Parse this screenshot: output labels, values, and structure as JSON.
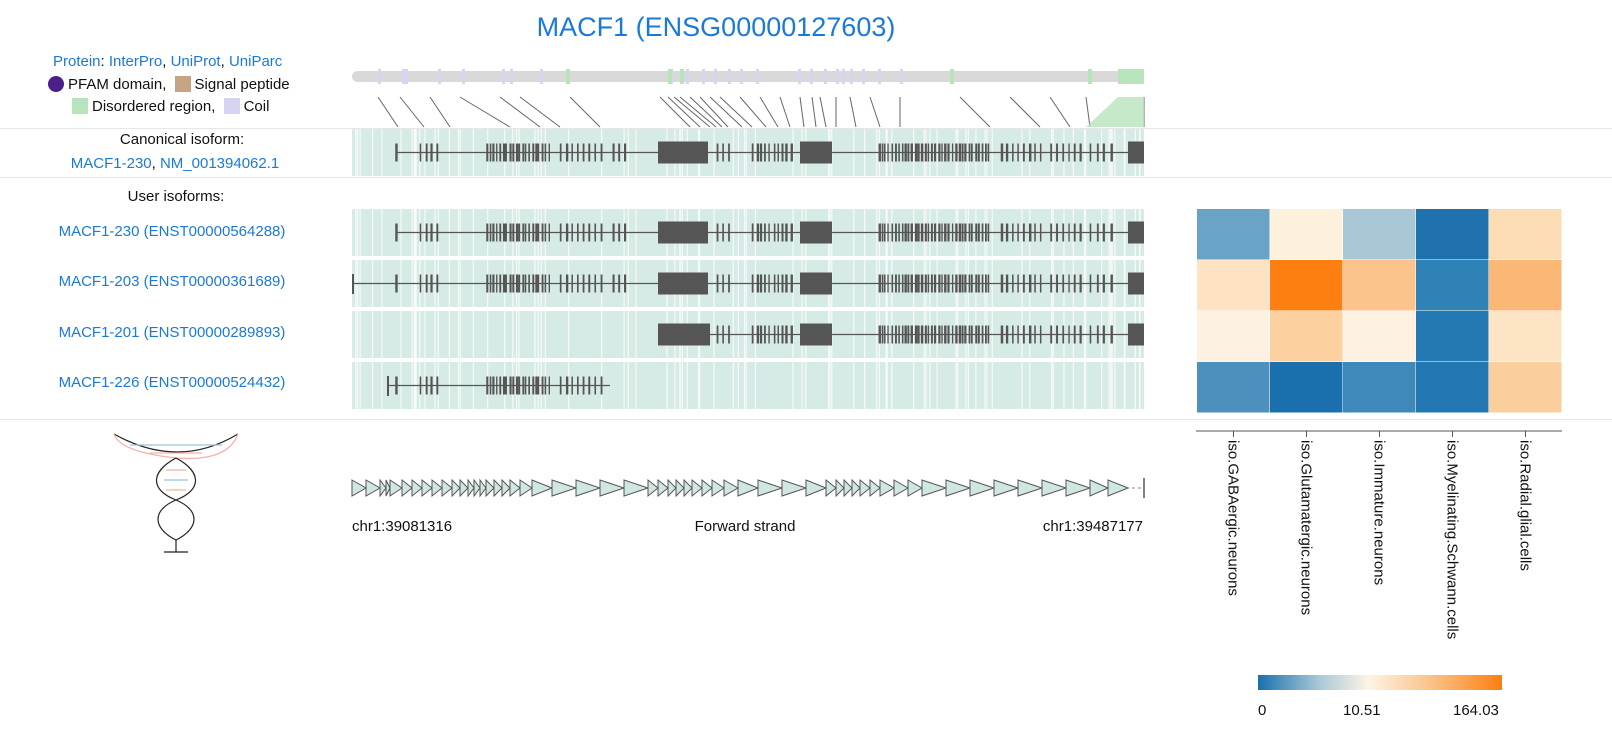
{
  "title": "MACF1 (ENSG00000127603)",
  "protein": {
    "prefix": "Protein",
    "links": [
      "InterPro",
      "UniProt",
      "UniParc"
    ],
    "legend": [
      "PFAM domain,",
      "Signal peptide",
      "Disordered region,",
      "Coil"
    ],
    "colors": {
      "pfam": "#4b1f8a",
      "signal": "#c4a484",
      "disordered": "#b7e4bb",
      "coil": "#d6d4f1"
    }
  },
  "canonical": {
    "heading": "Canonical isoform:",
    "links": [
      "MACF1-230",
      "NM_001394062.1"
    ]
  },
  "user_isoforms": {
    "heading": "User isoforms:",
    "items": [
      "MACF1-230 (ENST00000564288)",
      "MACF1-203 (ENST00000361689)",
      "MACF1-201 (ENST00000289893)",
      "MACF1-226 (ENST00000524432)"
    ]
  },
  "genome": {
    "start": "chr1:39081316",
    "strand": "Forward strand",
    "end": "chr1:39487177"
  },
  "heatmap": {
    "columns": [
      "iso.GABAergic.neurons",
      "iso.Glutamatergic.neurons",
      "iso.Immature.neurons",
      "iso.Myelinating.Schwann.cells",
      "iso.Radial.glial.cells"
    ],
    "cell_colors": [
      [
        "#6aa3c6",
        "#fdf0dc",
        "#a8c8d6",
        "#1f72ae",
        "#fcdcb5"
      ],
      [
        "#fde3c3",
        "#fd7f12",
        "#fbc48c",
        "#2f82b6",
        "#fbb775"
      ],
      [
        "#fdf1e1",
        "#fcd09f",
        "#fdf2e2",
        "#2479b2",
        "#fde4c5"
      ],
      [
        "#4d90bd",
        "#1a70ad",
        "#3f89ba",
        "#2277b2",
        "#fbcf9d"
      ]
    ],
    "scale": {
      "labels": [
        "0",
        "10.51",
        "164.03"
      ],
      "gradient": [
        "#1a70ad",
        "#a8c8d6",
        "#fdf4e6",
        "#fbc48c",
        "#fd7f12"
      ]
    }
  },
  "track_colors": {
    "exon_bg": "#d7ebe6",
    "exon": "#555555",
    "line": "#555555"
  }
}
